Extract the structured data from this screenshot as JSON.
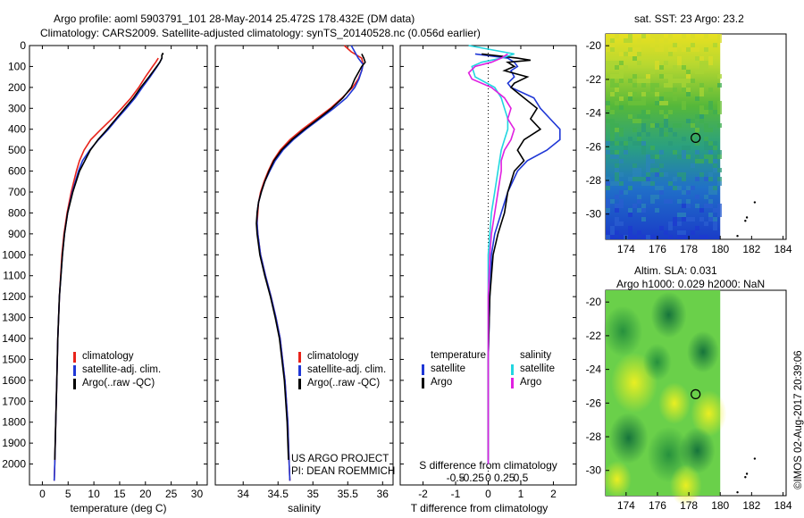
{
  "header": {
    "line1": "Argo profile: aoml 5903791_101 28-May-2014 25.472S 178.432E (DM data)",
    "line2": "Climatology: CARS2009. Satellite-adjusted climatology: synTS_20140528.nc (0.056d earlier)"
  },
  "maps": {
    "sst_label": "sat. SST: 23 Argo: 23.2",
    "sla_label1": "Altim. SLA: 0.031",
    "sla_label2": "Argo h1000: 0.029 h2000: NaN",
    "stamp": "©IMOS 02-Aug-2017 20:39:06",
    "lon_ticks": [
      "174",
      "176",
      "178",
      "180",
      "182",
      "184"
    ],
    "lat_ticks": [
      "-20",
      "-22",
      "-24",
      "-26",
      "-28",
      "-30"
    ]
  },
  "legends": {
    "profile": [
      "climatology",
      "satellite-adj. clim.",
      "Argo(..raw -QC)"
    ],
    "diff_temperature_title": "temperature",
    "diff_salinity_title": "salinity",
    "diff_items": [
      "satellite",
      "Argo"
    ]
  },
  "project": {
    "line1": "US ARGO PROJECT",
    "line2": "PI: DEAN ROEMMICH"
  },
  "colors": {
    "climatology": "#e8231a",
    "satellite": "#1f37d6",
    "argo": "#000000",
    "sat_salinity": "#22d6e0",
    "argo_salinity": "#e020e0"
  },
  "chart_data": [
    {
      "type": "line",
      "xlabel": "temperature (deg C)",
      "ylabel": "",
      "xlim": [
        -2.5,
        32
      ],
      "ylim": [
        2100,
        0
      ],
      "x_ticks": [
        0,
        5,
        10,
        15,
        20,
        25,
        30
      ],
      "y_ticks": [
        0,
        100,
        200,
        300,
        400,
        500,
        600,
        700,
        800,
        900,
        1000,
        1100,
        1200,
        1300,
        1400,
        1500,
        1600,
        1700,
        1800,
        1900,
        2000
      ],
      "series": [
        {
          "name": "climatology",
          "depth": [
            60,
            80,
            100,
            150,
            200,
            250,
            300,
            350,
            400,
            450,
            500,
            550,
            600,
            700,
            800,
            900,
            1000,
            1200,
            1400,
            1600,
            1800,
            2000,
            2080
          ],
          "values": [
            22.5,
            22.0,
            21.4,
            20.0,
            18.7,
            17.2,
            15.4,
            13.5,
            11.4,
            9.4,
            8.1,
            7.2,
            6.6,
            5.6,
            4.8,
            4.2,
            3.8,
            3.3,
            3.0,
            2.8,
            2.6,
            2.4,
            2.3
          ]
        },
        {
          "name": "satellite-adj. clim.",
          "depth": [
            60,
            80,
            100,
            150,
            200,
            250,
            300,
            350,
            400,
            450,
            500,
            550,
            600,
            700,
            800,
            900,
            1000,
            1200,
            1400,
            1600,
            1800,
            2000,
            2080
          ],
          "values": [
            23.2,
            22.8,
            22.3,
            20.9,
            19.4,
            18.0,
            16.3,
            14.5,
            12.8,
            10.9,
            9.2,
            7.8,
            7.0,
            5.8,
            4.9,
            4.3,
            3.9,
            3.3,
            3.0,
            2.8,
            2.6,
            2.4,
            2.3
          ]
        },
        {
          "name": "Argo(..raw -QC)",
          "depth": [
            35,
            40,
            45,
            60,
            80,
            100,
            150,
            200,
            250,
            300,
            350,
            400,
            450,
            500,
            600,
            700,
            800,
            900,
            1000,
            1200,
            1400,
            1600,
            1800,
            1980
          ],
          "values": [
            23.3,
            23.4,
            23.2,
            23.2,
            22.8,
            22.2,
            20.7,
            19.1,
            17.7,
            16.0,
            14.3,
            12.6,
            10.8,
            9.3,
            7.2,
            5.9,
            4.9,
            4.3,
            3.9,
            3.3,
            3.0,
            2.8,
            2.6,
            2.4
          ]
        }
      ]
    },
    {
      "type": "line",
      "xlabel": "salinity",
      "ylabel": "",
      "xlim": [
        33.6,
        36.15
      ],
      "ylim": [
        2100,
        0
      ],
      "x_ticks": [
        34,
        34.5,
        35,
        35.5,
        36
      ],
      "series": [
        {
          "name": "climatology",
          "depth": [
            0,
            30,
            60,
            90,
            120,
            160,
            200,
            250,
            300,
            350,
            400,
            450,
            500,
            550,
            600,
            650,
            700,
            750,
            800,
            850,
            900,
            1000,
            1100,
            1200,
            1300,
            1400,
            1600,
            1800,
            2000,
            2080
          ],
          "values": [
            35.45,
            35.55,
            35.7,
            35.72,
            35.7,
            35.65,
            35.57,
            35.42,
            35.25,
            35.05,
            34.85,
            34.67,
            34.53,
            34.43,
            34.36,
            34.3,
            34.25,
            34.22,
            34.21,
            34.2,
            34.21,
            34.25,
            34.32,
            34.4,
            34.47,
            34.53,
            34.6,
            34.64,
            34.66,
            34.67
          ]
        },
        {
          "name": "satellite-adj. clim.",
          "depth": [
            0,
            30,
            60,
            90,
            120,
            160,
            200,
            250,
            300,
            350,
            400,
            450,
            500,
            550,
            600,
            650,
            700,
            750,
            800,
            850,
            900,
            1000,
            1100,
            1200,
            1300,
            1400,
            1600,
            1800,
            2000,
            2080
          ],
          "values": [
            35.55,
            35.6,
            35.65,
            35.72,
            35.7,
            35.66,
            35.6,
            35.48,
            35.3,
            35.1,
            34.9,
            34.72,
            34.57,
            34.46,
            34.38,
            34.31,
            34.26,
            34.22,
            34.2,
            34.2,
            34.21,
            34.25,
            34.32,
            34.4,
            34.47,
            34.53,
            34.6,
            34.64,
            34.66,
            34.67
          ]
        },
        {
          "name": "Argo(..raw -QC)",
          "depth": [
            40,
            60,
            80,
            100,
            130,
            160,
            200,
            250,
            300,
            350,
            400,
            450,
            500,
            550,
            600,
            650,
            700,
            750,
            800,
            850,
            900,
            1000,
            1100,
            1200,
            1300,
            1400,
            1600,
            1800,
            1980
          ],
          "values": [
            35.7,
            35.73,
            35.75,
            35.7,
            35.65,
            35.6,
            35.55,
            35.43,
            35.27,
            35.08,
            34.88,
            34.7,
            34.55,
            34.44,
            34.37,
            34.31,
            34.26,
            34.22,
            34.2,
            34.19,
            34.2,
            34.24,
            34.31,
            34.39,
            34.46,
            34.52,
            34.59,
            34.63,
            34.65
          ]
        }
      ]
    },
    {
      "type": "line",
      "xlabel": "T difference from climatology",
      "xlabel_top": "S difference from climatology",
      "ylabel": "",
      "xlim": [
        -2.7,
        2.7
      ],
      "ylim": [
        2100,
        0
      ],
      "x_ticks": [
        -2,
        -1,
        0,
        1,
        2
      ],
      "x_tick_labels": [
        "-2",
        "-1",
        "0",
        "1",
        "2"
      ],
      "s_ticks": [
        -1.0,
        -0.5,
        0,
        0.5,
        1.0
      ],
      "s_tick_labels": [
        "-0.5",
        "-0.25",
        "0",
        "0.25",
        "0.5"
      ],
      "series": [
        {
          "name": "temperature satellite",
          "depth": [
            40,
            60,
            80,
            100,
            120,
            150,
            180,
            200,
            250,
            300,
            350,
            400,
            450,
            500,
            550,
            600,
            700,
            800,
            900,
            1000,
            1200,
            1500,
            2000
          ],
          "values": [
            -0.4,
            0.6,
            0.8,
            0.9,
            0.7,
            0.8,
            0.6,
            0.7,
            1.4,
            1.6,
            1.9,
            2.2,
            2.2,
            1.8,
            1.2,
            0.9,
            0.6,
            0.4,
            0.2,
            0.1,
            0.05,
            0.0,
            0.0
          ]
        },
        {
          "name": "temperature Argo",
          "depth": [
            40,
            60,
            70,
            80,
            100,
            120,
            150,
            180,
            200,
            250,
            300,
            350,
            400,
            450,
            500,
            550,
            600,
            700,
            800,
            900,
            1000,
            1200,
            1500,
            1980
          ],
          "values": [
            -0.2,
            0.9,
            1.3,
            0.6,
            0.8,
            0.5,
            1.2,
            0.8,
            0.7,
            1.1,
            1.5,
            1.3,
            1.6,
            1.1,
            0.9,
            1.1,
            0.8,
            0.6,
            0.5,
            0.3,
            0.15,
            0.05,
            0.0,
            0.0
          ]
        },
        {
          "name": "salinity satellite",
          "depth": [
            0,
            40,
            60,
            80,
            100,
            150,
            200,
            250,
            300,
            350,
            400,
            450,
            500,
            600,
            700,
            800,
            900,
            1000,
            1200,
            1500,
            2000
          ],
          "values": [
            -0.6,
            0.8,
            0.4,
            -0.2,
            -0.5,
            -0.4,
            0.2,
            0.4,
            0.5,
            0.6,
            0.6,
            0.5,
            0.4,
            0.3,
            0.2,
            0.1,
            0.05,
            0.0,
            0.0,
            0.0,
            0.0
          ]
        },
        {
          "name": "salinity Argo",
          "depth": [
            40,
            60,
            80,
            100,
            130,
            160,
            200,
            250,
            300,
            350,
            400,
            450,
            500,
            550,
            600,
            700,
            800,
            900,
            1000,
            1200,
            1500,
            2000
          ],
          "values": [
            0.6,
            0.4,
            0.1,
            -0.4,
            -0.6,
            -0.5,
            0.1,
            0.5,
            0.7,
            0.6,
            0.8,
            0.7,
            0.5,
            0.4,
            0.4,
            0.3,
            0.2,
            0.1,
            0.05,
            0.0,
            0.0,
            0.0
          ]
        }
      ]
    }
  ]
}
